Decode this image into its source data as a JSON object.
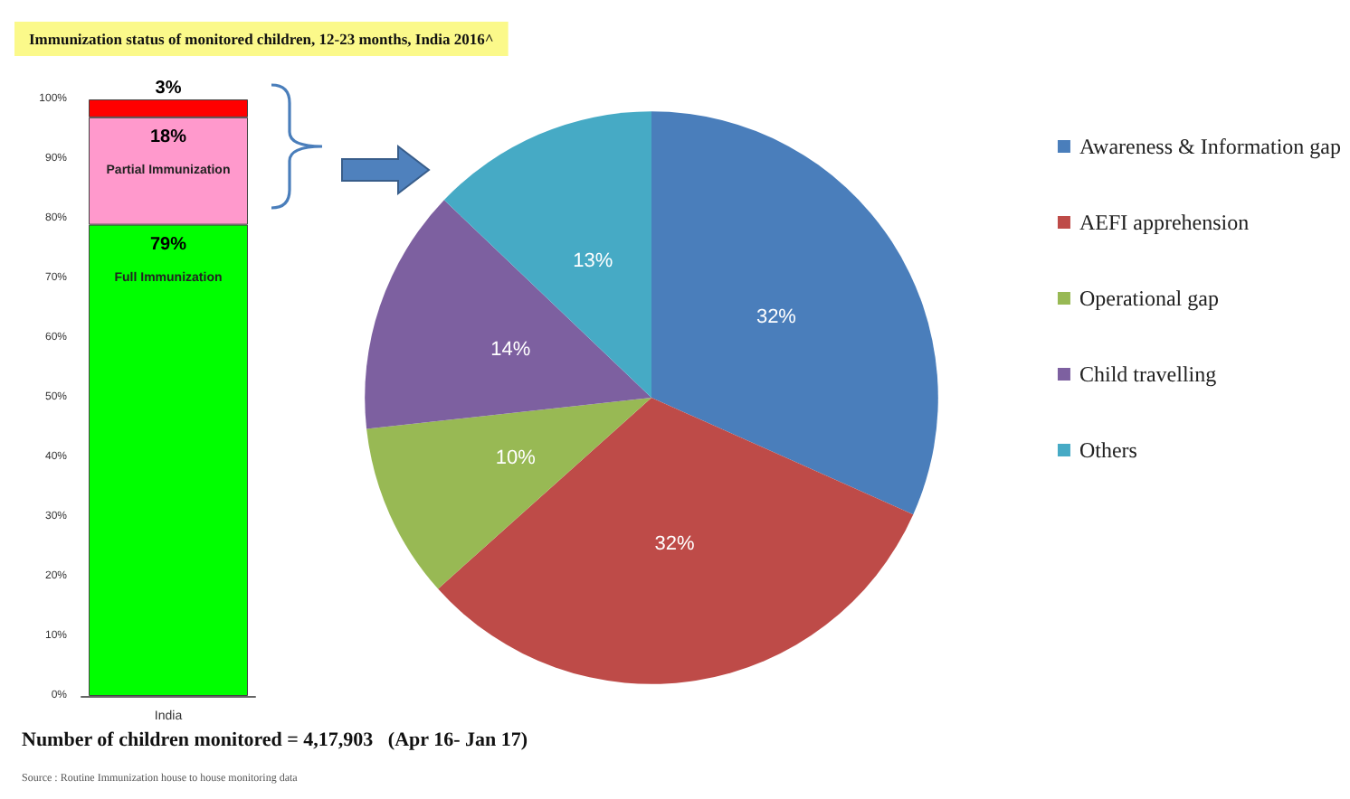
{
  "chart_data": [
    {
      "type": "bar",
      "title": "Immunization status of monitored children, 12-23 months, India 2016^",
      "categories": [
        "India"
      ],
      "stacked": true,
      "ylim": [
        0,
        100
      ],
      "yticks": [
        {
          "value": 0,
          "label": "0%"
        },
        {
          "value": 10,
          "label": "10%"
        },
        {
          "value": 20,
          "label": "20%"
        },
        {
          "value": 30,
          "label": "30%"
        },
        {
          "value": 40,
          "label": "40%"
        },
        {
          "value": 50,
          "label": "50%"
        },
        {
          "value": 60,
          "label": "60%"
        },
        {
          "value": 70,
          "label": "70%"
        },
        {
          "value": 80,
          "label": "80%"
        },
        {
          "value": 90,
          "label": "90%"
        },
        {
          "value": 100,
          "label": "100%"
        }
      ],
      "series": [
        {
          "name": "Full Immunization",
          "color": "#00ff00",
          "values": [
            79
          ],
          "value_labels": [
            "79%"
          ]
        },
        {
          "name": "Partial Immunization",
          "color": "#ff99cc",
          "values": [
            18
          ],
          "value_labels": [
            "18%"
          ]
        },
        {
          "color": "#ff0000",
          "values": [
            3
          ],
          "value_labels": [
            "3%"
          ]
        }
      ],
      "grid": false,
      "legend": false,
      "annotations": [
        "Number of children monitored = 4,17,903   (Apr 16- Jan 17)",
        "Source : Routine Immunization house to house monitoring data"
      ]
    },
    {
      "type": "pie",
      "categories": [
        "Awareness & Information gap",
        "AEFI apprehension",
        "Operational gap",
        "Child travelling",
        "Others"
      ],
      "values": [
        32,
        32,
        10,
        14,
        13
      ],
      "colors": [
        "#4a7ebb",
        "#be4b48",
        "#98b954",
        "#7d60a0",
        "#46aac5"
      ],
      "value_labels": [
        "32%",
        "32%",
        "10%",
        "14%",
        "13%"
      ],
      "legend": "right"
    }
  ]
}
